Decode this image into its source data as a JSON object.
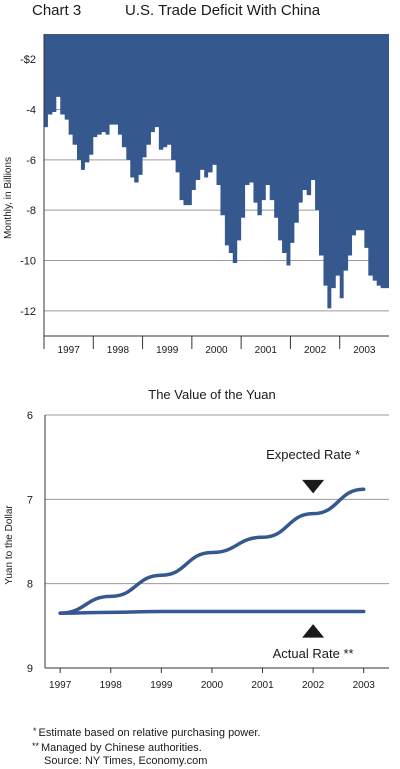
{
  "figure": {
    "chart_number": "Chart 3",
    "notes": [
      {
        "mark": "*",
        "text": "Estimate based on relative purchasing power."
      },
      {
        "mark": "**",
        "text": "Managed by Chinese authorities."
      },
      {
        "mark": "",
        "text": "Source: NY Times, Economy.com"
      }
    ]
  },
  "chart_data": [
    {
      "type": "area",
      "title": "U.S. Trade Deficit With China",
      "xlabel": "",
      "ylabel": "Monthly, in Billions",
      "colors": {
        "fill": "#35588f",
        "grid": "#9a9a9a",
        "axis": "#333333"
      },
      "ylim": [
        -13,
        -1
      ],
      "yticks": [
        {
          "value": -2,
          "label": "-$2"
        },
        {
          "value": -4,
          "label": "-4"
        },
        {
          "value": -6,
          "label": "-6"
        },
        {
          "value": -8,
          "label": "-8"
        },
        {
          "value": -10,
          "label": "-10"
        },
        {
          "value": -12,
          "label": "-12"
        }
      ],
      "xlim": [
        1996.5,
        2003.5
      ],
      "xticks": [
        {
          "value": 1997,
          "label": "1997"
        },
        {
          "value": 1998,
          "label": "1998"
        },
        {
          "value": 1999,
          "label": "1999"
        },
        {
          "value": 2000,
          "label": "2000"
        },
        {
          "value": 2001,
          "label": "2001"
        },
        {
          "value": 2002,
          "label": "2002"
        },
        {
          "value": 2003,
          "label": "2003"
        }
      ],
      "grid": true,
      "x": [
        1996.5,
        1996.58,
        1996.67,
        1996.75,
        1996.83,
        1996.92,
        1997.0,
        1997.08,
        1997.17,
        1997.25,
        1997.33,
        1997.42,
        1997.5,
        1997.58,
        1997.67,
        1997.75,
        1997.83,
        1997.92,
        1998.0,
        1998.08,
        1998.17,
        1998.25,
        1998.33,
        1998.42,
        1998.5,
        1998.58,
        1998.67,
        1998.75,
        1998.83,
        1998.92,
        1999.0,
        1999.08,
        1999.17,
        1999.25,
        1999.33,
        1999.42,
        1999.5,
        1999.58,
        1999.67,
        1999.75,
        1999.83,
        1999.92,
        2000.0,
        2000.08,
        2000.17,
        2000.25,
        2000.33,
        2000.42,
        2000.5,
        2000.58,
        2000.67,
        2000.75,
        2000.83,
        2000.92,
        2001.0,
        2001.08,
        2001.17,
        2001.25,
        2001.33,
        2001.42,
        2001.5,
        2001.58,
        2001.67,
        2001.75,
        2001.83,
        2001.92,
        2002.0,
        2002.08,
        2002.17,
        2002.25,
        2002.33,
        2002.42,
        2002.5,
        2002.58,
        2002.67,
        2002.75,
        2002.83,
        2002.92,
        2003.0,
        2003.08,
        2003.17,
        2003.25,
        2003.33,
        2003.42
      ],
      "values": [
        -4.7,
        -4.2,
        -4.1,
        -3.5,
        -4.2,
        -4.4,
        -5.0,
        -5.4,
        -6.0,
        -6.4,
        -6.1,
        -5.8,
        -5.1,
        -5.0,
        -4.9,
        -5.0,
        -4.6,
        -4.6,
        -5.0,
        -5.5,
        -6.0,
        -6.7,
        -6.9,
        -6.6,
        -5.9,
        -5.4,
        -4.9,
        -4.7,
        -5.6,
        -5.5,
        -5.4,
        -6.0,
        -6.5,
        -7.6,
        -7.8,
        -7.8,
        -7.2,
        -6.8,
        -6.4,
        -6.7,
        -6.5,
        -6.2,
        -7.0,
        -8.2,
        -9.4,
        -9.7,
        -10.1,
        -9.2,
        -8.3,
        -7.0,
        -6.9,
        -7.7,
        -8.2,
        -7.6,
        -7.0,
        -7.6,
        -8.3,
        -9.2,
        -9.7,
        -10.2,
        -9.3,
        -8.5,
        -7.7,
        -7.2,
        -7.4,
        -6.8,
        -8.0,
        -9.8,
        -11.0,
        -11.9,
        -11.1,
        -10.6,
        -11.5,
        -10.4,
        -9.8,
        -9.0,
        -8.8,
        -8.8,
        -9.5,
        -10.6,
        -10.8,
        -11.0,
        -11.1,
        -11.1
      ]
    },
    {
      "type": "line",
      "title": "The Value of the Yuan",
      "xlabel": "",
      "ylabel": "Yuan to the Dollar",
      "ylim": [
        9,
        6
      ],
      "yticks": [
        {
          "value": 6,
          "label": "6"
        },
        {
          "value": 7,
          "label": "7"
        },
        {
          "value": 8,
          "label": "8"
        },
        {
          "value": 9,
          "label": "9"
        }
      ],
      "xlim": [
        1996.7,
        2003.5
      ],
      "xticks": [
        {
          "value": 1997,
          "label": "1997"
        },
        {
          "value": 1998,
          "label": "1998"
        },
        {
          "value": 1999,
          "label": "1999"
        },
        {
          "value": 2000,
          "label": "2000"
        },
        {
          "value": 2001,
          "label": "2001"
        },
        {
          "value": 2002,
          "label": "2002"
        },
        {
          "value": 2003,
          "label": "2003"
        }
      ],
      "grid": true,
      "colors": {
        "line": "#35588f",
        "grid": "#9a9a9a",
        "axis": "#333333",
        "marker": "#1a1a1a"
      },
      "series": [
        {
          "name": "Expected Rate",
          "mark": "*",
          "x": [
            1997,
            1998,
            1999,
            2000,
            2001,
            2002,
            2003
          ],
          "values": [
            8.35,
            8.15,
            7.9,
            7.63,
            7.45,
            7.17,
            6.88
          ]
        },
        {
          "name": "Actual Rate",
          "mark": "**",
          "x": [
            1997,
            1998,
            1999,
            2000,
            2001,
            2002,
            2003
          ],
          "values": [
            8.35,
            8.34,
            8.33,
            8.33,
            8.33,
            8.33,
            8.33
          ]
        }
      ]
    }
  ]
}
